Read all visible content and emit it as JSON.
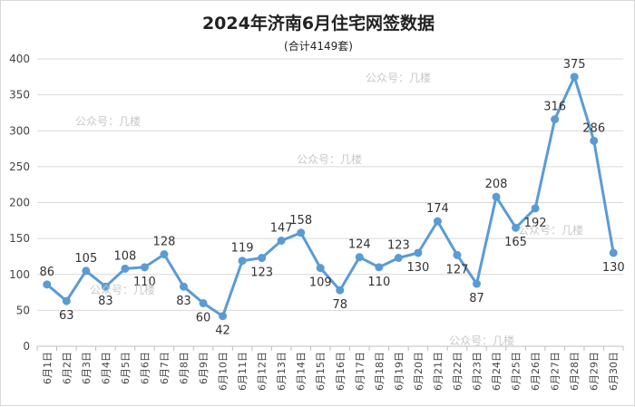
{
  "chart_data": {
    "type": "line",
    "title": "2024年济南6月住宅网签数据",
    "subtitle": "(合计4149套)",
    "categories": [
      "6月1日",
      "6月2日",
      "6月3日",
      "6月4日",
      "6月5日",
      "6月6日",
      "6月7日",
      "6月8日",
      "6月9日",
      "6月10日",
      "6月11日",
      "6月12日",
      "6月13日",
      "6月14日",
      "6月15日",
      "6月16日",
      "6月17日",
      "6月18日",
      "6月19日",
      "6月20日",
      "6月21日",
      "6月22日",
      "6月23日",
      "6月24日",
      "6月25日",
      "6月26日",
      "6月27日",
      "6月28日",
      "6月29日",
      "6月30日"
    ],
    "values": [
      86,
      63,
      105,
      83,
      108,
      110,
      128,
      83,
      60,
      42,
      119,
      123,
      147,
      158,
      109,
      78,
      124,
      110,
      123,
      130,
      174,
      127,
      87,
      208,
      165,
      192,
      316,
      375,
      286,
      130
    ],
    "ylim": [
      0,
      400
    ],
    "yticks": [
      0,
      50,
      100,
      150,
      200,
      250,
      300,
      350,
      400
    ],
    "grid": true,
    "legend": "none",
    "line_color": "#5b9bd5"
  },
  "watermarks": [
    "公众号：几楼",
    "公众号：几楼",
    "公众号：几楼",
    "公众号：几楼",
    "公众号：几楼",
    "公众号：几楼"
  ]
}
